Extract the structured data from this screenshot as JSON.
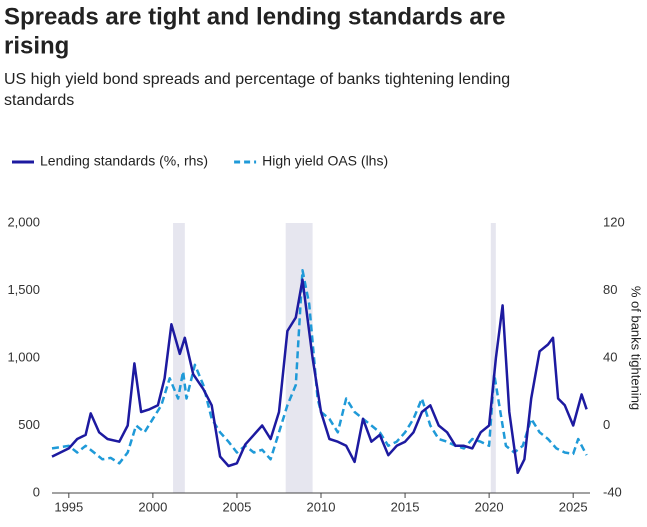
{
  "chart_data": {
    "type": "line",
    "title": [
      "Spreads are tight and lending standards are",
      "rising"
    ],
    "subtitle": [
      "US high yield bond spreads and percentage of banks tightening lending",
      "standards"
    ],
    "y2_label": "% of banks tightening",
    "xlim": [
      1994,
      2026
    ],
    "xticks": [
      1995,
      2000,
      2005,
      2010,
      2015,
      2020,
      2025
    ],
    "ylim": [
      0,
      2000
    ],
    "yticks": [
      0,
      500,
      {
        "value": 1000,
        "label": "1,000"
      },
      {
        "value": 1500,
        "label": "1,500"
      },
      {
        "value": 2000,
        "label": "2,000"
      }
    ],
    "y2lim": [
      -40,
      120
    ],
    "y2ticks": [
      -40,
      0,
      40,
      80,
      120
    ],
    "shaded_periods": [
      [
        2001.2,
        2001.9
      ],
      [
        2007.9,
        2009.5
      ],
      [
        2020.1,
        2020.4
      ]
    ],
    "shade_color": "#e6e6ef",
    "series": [
      {
        "name": "Lending standards (%, rhs)",
        "color": "#1d1aa0",
        "dashed": false,
        "axis": "y2",
        "x": [
          1994,
          1995,
          1995.5,
          1996,
          1996.3,
          1996.8,
          1997.3,
          1998,
          1998.5,
          1998.9,
          1999.3,
          1999.8,
          2000.3,
          2000.7,
          2001.1,
          2001.6,
          2001.9,
          2002.4,
          2003,
          2003.5,
          2004,
          2004.5,
          2005,
          2005.5,
          2006,
          2006.5,
          2007,
          2007.5,
          2008,
          2008.5,
          2008.9,
          2009.5,
          2010,
          2010.5,
          2011,
          2011.5,
          2012,
          2012.5,
          2013,
          2013.5,
          2014,
          2014.5,
          2015,
          2015.5,
          2016,
          2016.5,
          2017,
          2017.5,
          2018,
          2018.5,
          2019,
          2019.5,
          2020,
          2020.4,
          2020.8,
          2021.2,
          2021.7,
          2022.1,
          2022.5,
          2023,
          2023.5,
          2023.8,
          2024.1,
          2024.5,
          2025,
          2025.5,
          2025.8
        ],
        "values": [
          -18.4,
          -13.6,
          -8,
          -5.6,
          7.2,
          -4,
          -8,
          -9.6,
          0,
          36.8,
          8,
          9.6,
          12,
          28,
          60,
          42.4,
          52,
          30.4,
          21.6,
          12,
          -18.4,
          -24,
          -22.4,
          -11.2,
          -5.6,
          0,
          -8,
          8,
          56,
          64,
          86.4,
          40,
          8,
          -8,
          -9.6,
          -12,
          -21.6,
          4,
          -9.6,
          -5.6,
          -17.6,
          -12,
          -9.6,
          -4,
          8,
          12,
          0,
          -4,
          -12,
          -12,
          -13.6,
          -4,
          0,
          40,
          71.2,
          8,
          -28,
          -20,
          16,
          44,
          48,
          52,
          16,
          12,
          0,
          18.4,
          9.6
        ]
      },
      {
        "name": "High yield OAS (lhs)",
        "color": "#1f9ad8",
        "dashed": true,
        "axis": "y",
        "x": [
          1994,
          1995,
          1995.5,
          1996,
          1996.5,
          1997,
          1997.5,
          1998,
          1998.5,
          1999,
          1999.5,
          2000,
          2000.5,
          2001,
          2001.5,
          2001.8,
          2002,
          2002.5,
          2003,
          2003.5,
          2004,
          2004.5,
          2005,
          2005.5,
          2006,
          2006.5,
          2007,
          2007.5,
          2008,
          2008.5,
          2008.9,
          2009.3,
          2009.8,
          2010,
          2010.5,
          2011,
          2011.5,
          2012,
          2012.5,
          2013,
          2013.5,
          2014,
          2014.5,
          2015,
          2015.5,
          2016,
          2016.5,
          2017,
          2017.5,
          2018,
          2018.5,
          2019,
          2019.5,
          2020,
          2020.3,
          2020.8,
          2021,
          2021.5,
          2022,
          2022.5,
          2023,
          2023.5,
          2024,
          2024.5,
          2025,
          2025.3,
          2025.8
        ],
        "values": [
          330,
          350,
          300,
          350,
          300,
          250,
          260,
          220,
          300,
          500,
          450,
          550,
          650,
          850,
          700,
          900,
          700,
          950,
          800,
          550,
          450,
          380,
          300,
          350,
          300,
          320,
          250,
          450,
          650,
          800,
          1650,
          1400,
          700,
          600,
          550,
          450,
          700,
          600,
          550,
          500,
          450,
          350,
          380,
          450,
          550,
          700,
          500,
          400,
          380,
          350,
          330,
          400,
          380,
          350,
          880,
          500,
          350,
          300,
          350,
          550,
          450,
          400,
          330,
          300,
          290,
          400,
          280
        ]
      }
    ]
  }
}
